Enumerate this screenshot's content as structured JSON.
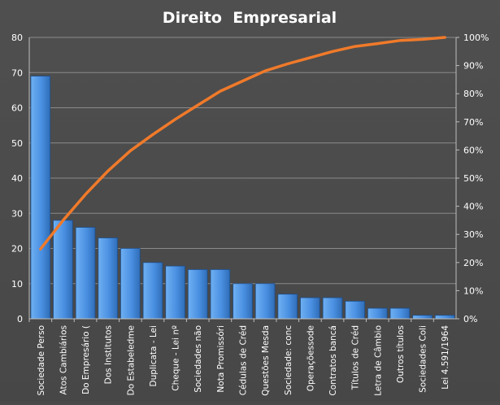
{
  "chart_data": {
    "type": "bar",
    "title": "Direito  Empresarial",
    "categories": [
      "Sociedade Perso",
      "Atos Cambiários",
      "Do Empresário (",
      "Dos Institutos",
      "Do Estabeledme",
      "Duplicata - Lei",
      "Cheque - Lei nº",
      "Sociedades não",
      "Nota Promissóri",
      "Cédulas de Créd",
      "Questões Mesda",
      "Sociedade: conc",
      "Operaçõessode",
      "Contratos bancá",
      "Títulos de Créd",
      "Letra de Câmbio",
      "Outros títulos",
      "Sociedades Coli",
      "Lei 4.591/1964"
    ],
    "series": [
      {
        "type": "bar",
        "values": [
          69,
          28,
          26,
          23,
          20,
          16,
          15,
          14,
          14,
          10,
          10,
          7,
          6,
          6,
          5,
          3,
          3,
          1,
          1
        ],
        "color": "#4a90e2"
      },
      {
        "type": "line",
        "axis": "right",
        "values": [
          24.8,
          34.9,
          44.2,
          52.5,
          59.7,
          65.5,
          70.9,
          75.9,
          80.9,
          84.5,
          88.1,
          90.6,
          92.8,
          95.0,
          96.8,
          97.8,
          98.9,
          99.3,
          100.0
        ],
        "color": "#f07a2a"
      }
    ],
    "y_left": {
      "min": 0,
      "max": 80,
      "ticks": [
        "0",
        "10",
        "20",
        "30",
        "40",
        "50",
        "60",
        "70",
        "80"
      ]
    },
    "y_right": {
      "min": 0,
      "max": 100,
      "ticks": [
        "0%",
        "10%",
        "20%",
        "30%",
        "40%",
        "50%",
        "60%",
        "70%",
        "80%",
        "90%",
        "100%"
      ]
    },
    "grid": true,
    "legend": "none"
  }
}
